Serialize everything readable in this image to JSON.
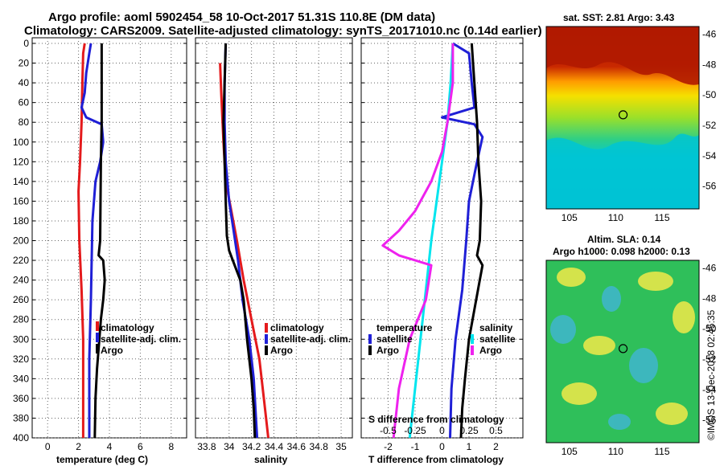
{
  "title": {
    "line1": "Argo profile: aoml 5902454_58 10-Oct-2017 51.31S 110.8E (DM data)",
    "line2": "Climatology: CARS2009. Satellite-adjusted climatology: synTS_20171010.nc (0.14d earlier)"
  },
  "colors": {
    "climatology": "#e41a1c",
    "satellite": "#1f1fd6",
    "argo": "#000000",
    "sat_salinity": "#00e5ee",
    "argo_salinity": "#ee22ee"
  },
  "chart_data": [
    {
      "type": "line",
      "id": "temperature",
      "xlabel": "temperature (deg C)",
      "ylabel": "depth",
      "xlim": [
        -1,
        9
      ],
      "ylim": [
        400,
        0
      ],
      "xticks": [
        "0",
        "2",
        "4",
        "6",
        "8"
      ],
      "xtick_values": [
        0,
        2,
        4,
        6,
        8
      ],
      "yticks": [
        "0",
        "20",
        "40",
        "60",
        "80",
        "100",
        "120",
        "140",
        "160",
        "180",
        "200",
        "220",
        "240",
        "260",
        "280",
        "300",
        "320",
        "340",
        "360",
        "380",
        "400"
      ],
      "legend": [
        "climatology",
        "satellite-adj. clim.",
        "Argo"
      ],
      "series": [
        {
          "name": "climatology",
          "color": "#e41a1c",
          "points": [
            [
              2.4,
              0
            ],
            [
              2.3,
              10
            ],
            [
              2.25,
              40
            ],
            [
              2.2,
              80
            ],
            [
              2.1,
              120
            ],
            [
              2.0,
              150
            ],
            [
              2.05,
              200
            ],
            [
              2.2,
              250
            ],
            [
              2.3,
              300
            ],
            [
              2.3,
              350
            ],
            [
              2.3,
              400
            ]
          ]
        },
        {
          "name": "satellite-adj. clim.",
          "color": "#1f1fd6",
          "points": [
            [
              2.8,
              0
            ],
            [
              2.7,
              10
            ],
            [
              2.5,
              30
            ],
            [
              2.4,
              50
            ],
            [
              2.2,
              65
            ],
            [
              2.5,
              75
            ],
            [
              3.5,
              82
            ],
            [
              3.6,
              100
            ],
            [
              3.4,
              120
            ],
            [
              3.1,
              140
            ],
            [
              2.9,
              180
            ],
            [
              2.8,
              260
            ],
            [
              2.7,
              320
            ],
            [
              2.7,
              400
            ]
          ]
        },
        {
          "name": "Argo",
          "color": "#000000",
          "points": [
            [
              3.5,
              0
            ],
            [
              3.5,
              40
            ],
            [
              3.5,
              80
            ],
            [
              3.45,
              120
            ],
            [
              3.4,
              200
            ],
            [
              3.3,
              215
            ],
            [
              3.6,
              220
            ],
            [
              3.7,
              240
            ],
            [
              3.6,
              260
            ],
            [
              3.45,
              280
            ],
            [
              3.35,
              300
            ],
            [
              3.2,
              330
            ],
            [
              3.1,
              360
            ],
            [
              3.05,
              400
            ]
          ]
        }
      ]
    },
    {
      "type": "line",
      "id": "salinity",
      "xlabel": "salinity",
      "xlim": [
        33.7,
        35.1
      ],
      "ylim": [
        400,
        0
      ],
      "xticks": [
        "33.8",
        "34",
        "34.2",
        "34.4",
        "34.6",
        "34.8",
        "35"
      ],
      "xtick_values": [
        33.8,
        34,
        34.2,
        34.4,
        34.6,
        34.8,
        35
      ],
      "yticks": [
        "0",
        "20",
        "40",
        "60",
        "80",
        "100",
        "120",
        "140",
        "160",
        "180",
        "200",
        "220",
        "240",
        "260",
        "280",
        "300",
        "320",
        "340",
        "360",
        "380",
        "400"
      ],
      "legend": [
        "climatology",
        "satellite-adj. clim.",
        "Argo"
      ],
      "series": [
        {
          "name": "climatology",
          "color": "#e41a1c",
          "points": [
            [
              33.92,
              20
            ],
            [
              33.93,
              50
            ],
            [
              33.95,
              100
            ],
            [
              33.97,
              140
            ],
            [
              34.02,
              170
            ],
            [
              34.07,
              200
            ],
            [
              34.13,
              240
            ],
            [
              34.2,
              280
            ],
            [
              34.27,
              320
            ],
            [
              34.31,
              360
            ],
            [
              34.35,
              400
            ]
          ]
        },
        {
          "name": "satellite-adj. clim.",
          "color": "#1f1fd6",
          "points": [
            [
              33.97,
              0
            ],
            [
              33.96,
              40
            ],
            [
              33.96,
              80
            ],
            [
              33.97,
              120
            ],
            [
              34.0,
              160
            ],
            [
              34.04,
              190
            ],
            [
              34.08,
              220
            ],
            [
              34.12,
              260
            ],
            [
              34.18,
              300
            ],
            [
              34.22,
              340
            ],
            [
              34.25,
              400
            ]
          ]
        },
        {
          "name": "Argo",
          "color": "#000000",
          "points": [
            [
              33.97,
              0
            ],
            [
              33.96,
              40
            ],
            [
              33.95,
              80
            ],
            [
              33.96,
              120
            ],
            [
              33.97,
              160
            ],
            [
              33.98,
              195
            ],
            [
              34.0,
              210
            ],
            [
              34.05,
              225
            ],
            [
              34.1,
              240
            ],
            [
              34.13,
              260
            ],
            [
              34.16,
              300
            ],
            [
              34.2,
              340
            ],
            [
              34.22,
              370
            ],
            [
              34.23,
              400
            ]
          ]
        }
      ]
    },
    {
      "type": "line",
      "id": "difference",
      "xlabel": "T difference from climatology",
      "xlabel_top": "S difference from climatology",
      "xlim": [
        -3,
        3
      ],
      "ylim": [
        400,
        0
      ],
      "xticks": [
        "-2",
        "-1",
        "0",
        "1",
        "2"
      ],
      "xtick_values": [
        -2,
        -1,
        0,
        1,
        2
      ],
      "sticks": [
        "-0.5",
        "-0.25",
        "0",
        "0.25",
        "0.5"
      ],
      "stick_values": [
        -0.5,
        -0.25,
        0,
        0.25,
        0.5
      ],
      "yticks": [
        "0",
        "20",
        "40",
        "60",
        "80",
        "100",
        "120",
        "140",
        "160",
        "180",
        "200",
        "220",
        "240",
        "260",
        "280",
        "300",
        "320",
        "340",
        "360",
        "380",
        "400"
      ],
      "legend_temperature": {
        "title": "temperature",
        "items": [
          "satellite",
          "Argo"
        ]
      },
      "legend_salinity": {
        "title": "salinity",
        "items": [
          "satellite",
          "Argo"
        ]
      },
      "series": [
        {
          "name": "T satellite",
          "color": "#1f1fd6",
          "points": [
            [
              0.4,
              0
            ],
            [
              1.0,
              10
            ],
            [
              1.1,
              40
            ],
            [
              1.2,
              65
            ],
            [
              0.0,
              75
            ],
            [
              1.2,
              82
            ],
            [
              1.5,
              95
            ],
            [
              1.3,
              120
            ],
            [
              1.0,
              160
            ],
            [
              0.9,
              200
            ],
            [
              0.75,
              250
            ],
            [
              0.5,
              300
            ],
            [
              0.35,
              350
            ],
            [
              0.3,
              400
            ]
          ]
        },
        {
          "name": "T Argo",
          "color": "#000000",
          "points": [
            [
              1.1,
              0
            ],
            [
              1.2,
              40
            ],
            [
              1.3,
              80
            ],
            [
              1.35,
              120
            ],
            [
              1.45,
              160
            ],
            [
              1.4,
              200
            ],
            [
              1.3,
              215
            ],
            [
              1.5,
              225
            ],
            [
              1.4,
              240
            ],
            [
              1.2,
              270
            ],
            [
              1.0,
              300
            ],
            [
              0.85,
              340
            ],
            [
              0.75,
              370
            ],
            [
              0.7,
              400
            ]
          ]
        },
        {
          "name": "S satellite",
          "color": "#00e5ee",
          "points": [
            [
              0.1,
              0
            ],
            [
              0.08,
              40
            ],
            [
              0.05,
              80
            ],
            [
              0.0,
              120
            ],
            [
              -0.05,
              160
            ],
            [
              -0.1,
              200
            ],
            [
              -0.15,
              250
            ],
            [
              -0.2,
              300
            ],
            [
              -0.25,
              350
            ],
            [
              -0.3,
              400
            ]
          ]
        },
        {
          "name": "S Argo",
          "color": "#ee22ee",
          "points": [
            [
              0.1,
              0
            ],
            [
              0.1,
              40
            ],
            [
              0.05,
              80
            ],
            [
              0.0,
              110
            ],
            [
              -0.1,
              140
            ],
            [
              -0.25,
              170
            ],
            [
              -0.4,
              190
            ],
            [
              -0.55,
              205
            ],
            [
              -0.4,
              215
            ],
            [
              -0.1,
              225
            ],
            [
              -0.15,
              260
            ],
            [
              -0.3,
              300
            ],
            [
              -0.4,
              350
            ],
            [
              -0.45,
              400
            ]
          ]
        }
      ]
    },
    {
      "type": "heatmap",
      "id": "sst_map",
      "title": "sat. SST: 2.81 Argo: 3.43",
      "xticks": [
        "105",
        "110",
        "115"
      ],
      "xtick_values": [
        105,
        110,
        115
      ],
      "yticks": [
        "-46",
        "-48",
        "-50",
        "-52",
        "-54",
        "-56"
      ],
      "ytick_values": [
        -46,
        -48,
        -50,
        -52,
        -54,
        -56
      ],
      "xlim": [
        102.5,
        119
      ],
      "ylim": [
        -57.5,
        -45.5
      ],
      "marker": [
        110.8,
        -51.31
      ]
    },
    {
      "type": "heatmap",
      "id": "sla_map",
      "title_line1": "Altim. SLA: 0.14",
      "title_line2": "Argo h1000: 0.098 h2000: 0.13",
      "xticks": [
        "105",
        "110",
        "115"
      ],
      "xtick_values": [
        105,
        110,
        115
      ],
      "yticks": [
        "-46",
        "-48",
        "-50",
        "-52",
        "-54",
        "-56"
      ],
      "ytick_values": [
        -46,
        -48,
        -50,
        -52,
        -54,
        -56
      ],
      "xlim": [
        102.5,
        119
      ],
      "ylim": [
        -57.5,
        -45.5
      ],
      "marker": [
        110.8,
        -51.31
      ]
    }
  ],
  "credit": "©IMOS 13-Dec-2018 02:45:35"
}
